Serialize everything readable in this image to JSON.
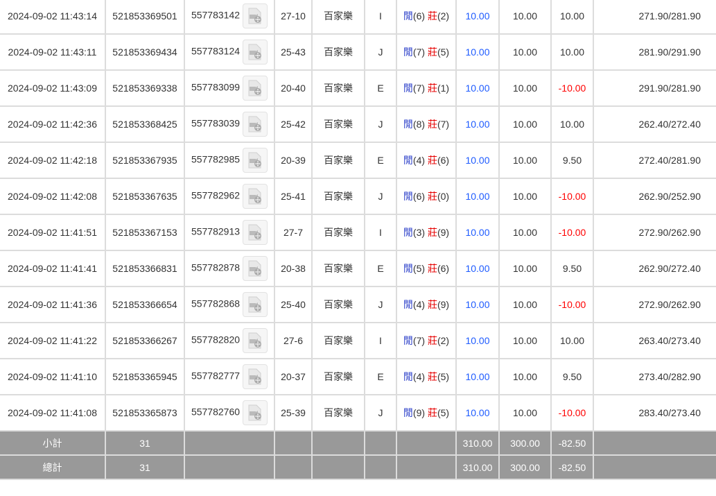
{
  "colors": {
    "positive": "#1e5bff",
    "negative": "#ff0000",
    "player": "#2b3fc9",
    "banker": "#e60000",
    "summary_bg": "#999999"
  },
  "icons": {
    "video": "video-file-icon"
  },
  "rows": [
    {
      "time": "2024-09-02 11:43:14",
      "bet_id": "521853369501",
      "round_id": "557783142",
      "table": "27-10",
      "game": "百家樂",
      "bet": "I",
      "player_label": "閒",
      "player_score": "(6)",
      "banker_label": "莊",
      "banker_score": "(2)",
      "bet_amount": "10.00",
      "valid_amount": "10.00",
      "win_loss": "10.00",
      "win_neg": false,
      "balance": "271.90/281.90"
    },
    {
      "time": "2024-09-02 11:43:11",
      "bet_id": "521853369434",
      "round_id": "557783124",
      "table": "25-43",
      "game": "百家樂",
      "bet": "J",
      "player_label": "閒",
      "player_score": "(7)",
      "banker_label": "莊",
      "banker_score": "(5)",
      "bet_amount": "10.00",
      "valid_amount": "10.00",
      "win_loss": "10.00",
      "win_neg": false,
      "balance": "281.90/291.90"
    },
    {
      "time": "2024-09-02 11:43:09",
      "bet_id": "521853369338",
      "round_id": "557783099",
      "table": "20-40",
      "game": "百家樂",
      "bet": "E",
      "player_label": "閒",
      "player_score": "(7)",
      "banker_label": "莊",
      "banker_score": "(1)",
      "bet_amount": "10.00",
      "valid_amount": "10.00",
      "win_loss": "-10.00",
      "win_neg": true,
      "balance": "291.90/281.90"
    },
    {
      "time": "2024-09-02 11:42:36",
      "bet_id": "521853368425",
      "round_id": "557783039",
      "table": "25-42",
      "game": "百家樂",
      "bet": "J",
      "player_label": "閒",
      "player_score": "(8)",
      "banker_label": "莊",
      "banker_score": "(7)",
      "bet_amount": "10.00",
      "valid_amount": "10.00",
      "win_loss": "10.00",
      "win_neg": false,
      "balance": "262.40/272.40"
    },
    {
      "time": "2024-09-02 11:42:18",
      "bet_id": "521853367935",
      "round_id": "557782985",
      "table": "20-39",
      "game": "百家樂",
      "bet": "E",
      "player_label": "閒",
      "player_score": "(4)",
      "banker_label": "莊",
      "banker_score": "(6)",
      "bet_amount": "10.00",
      "valid_amount": "10.00",
      "win_loss": "9.50",
      "win_neg": false,
      "balance": "272.40/281.90"
    },
    {
      "time": "2024-09-02 11:42:08",
      "bet_id": "521853367635",
      "round_id": "557782962",
      "table": "25-41",
      "game": "百家樂",
      "bet": "J",
      "player_label": "閒",
      "player_score": "(6)",
      "banker_label": "莊",
      "banker_score": "(0)",
      "bet_amount": "10.00",
      "valid_amount": "10.00",
      "win_loss": "-10.00",
      "win_neg": true,
      "balance": "262.90/252.90"
    },
    {
      "time": "2024-09-02 11:41:51",
      "bet_id": "521853367153",
      "round_id": "557782913",
      "table": "27-7",
      "game": "百家樂",
      "bet": "I",
      "player_label": "閒",
      "player_score": "(3)",
      "banker_label": "莊",
      "banker_score": "(9)",
      "bet_amount": "10.00",
      "valid_amount": "10.00",
      "win_loss": "-10.00",
      "win_neg": true,
      "balance": "272.90/262.90"
    },
    {
      "time": "2024-09-02 11:41:41",
      "bet_id": "521853366831",
      "round_id": "557782878",
      "table": "20-38",
      "game": "百家樂",
      "bet": "E",
      "player_label": "閒",
      "player_score": "(5)",
      "banker_label": "莊",
      "banker_score": "(6)",
      "bet_amount": "10.00",
      "valid_amount": "10.00",
      "win_loss": "9.50",
      "win_neg": false,
      "balance": "262.90/272.40"
    },
    {
      "time": "2024-09-02 11:41:36",
      "bet_id": "521853366654",
      "round_id": "557782868",
      "table": "25-40",
      "game": "百家樂",
      "bet": "J",
      "player_label": "閒",
      "player_score": "(4)",
      "banker_label": "莊",
      "banker_score": "(9)",
      "bet_amount": "10.00",
      "valid_amount": "10.00",
      "win_loss": "-10.00",
      "win_neg": true,
      "balance": "272.90/262.90"
    },
    {
      "time": "2024-09-02 11:41:22",
      "bet_id": "521853366267",
      "round_id": "557782820",
      "table": "27-6",
      "game": "百家樂",
      "bet": "I",
      "player_label": "閒",
      "player_score": "(7)",
      "banker_label": "莊",
      "banker_score": "(2)",
      "bet_amount": "10.00",
      "valid_amount": "10.00",
      "win_loss": "10.00",
      "win_neg": false,
      "balance": "263.40/273.40"
    },
    {
      "time": "2024-09-02 11:41:10",
      "bet_id": "521853365945",
      "round_id": "557782777",
      "table": "20-37",
      "game": "百家樂",
      "bet": "E",
      "player_label": "閒",
      "player_score": "(4)",
      "banker_label": "莊",
      "banker_score": "(5)",
      "bet_amount": "10.00",
      "valid_amount": "10.00",
      "win_loss": "9.50",
      "win_neg": false,
      "balance": "273.40/282.90"
    },
    {
      "time": "2024-09-02 11:41:08",
      "bet_id": "521853365873",
      "round_id": "557782760",
      "table": "25-39",
      "game": "百家樂",
      "bet": "J",
      "player_label": "閒",
      "player_score": "(9)",
      "banker_label": "莊",
      "banker_score": "(5)",
      "bet_amount": "10.00",
      "valid_amount": "10.00",
      "win_loss": "-10.00",
      "win_neg": true,
      "balance": "283.40/273.40"
    }
  ],
  "summary": [
    {
      "label": "小計",
      "count": "31",
      "bet_amount": "310.00",
      "valid_amount": "300.00",
      "win_loss": "-82.50"
    },
    {
      "label": "總計",
      "count": "31",
      "bet_amount": "310.00",
      "valid_amount": "300.00",
      "win_loss": "-82.50"
    }
  ]
}
